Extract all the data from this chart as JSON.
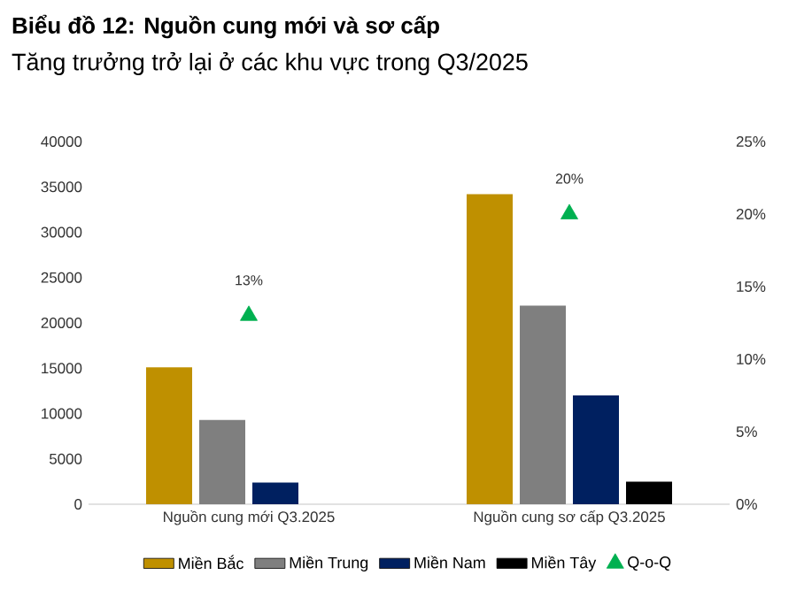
{
  "chart_data": {
    "type": "bar",
    "title": "Biểu đồ 12: Nguồn cung mới và sơ cấp",
    "subtitle": "Tăng trưởng trở lại ở các khu vực trong Q3/2025",
    "categories": [
      "Nguồn cung mới Q3.2025",
      "Nguồn cung sơ cấp Q3.2025"
    ],
    "series": [
      {
        "name": "Miền Bắc",
        "color": "#bf9000",
        "values": [
          15100,
          34200
        ]
      },
      {
        "name": "Miền Trung",
        "color": "#7f7f7f",
        "values": [
          9300,
          21900
        ]
      },
      {
        "name": "Miền Nam",
        "color": "#002060",
        "values": [
          2400,
          12000
        ]
      },
      {
        "name": "Miền Tây",
        "color": "#000000",
        "values": [
          null,
          2500
        ]
      },
      {
        "name": "Q-o-Q",
        "type": "scatter",
        "axis": "y2",
        "marker": "triangle",
        "color": "#00b050",
        "values": [
          13,
          20
        ],
        "value_labels": [
          "13%",
          "20%"
        ]
      }
    ],
    "ylim": [
      0,
      40000
    ],
    "yticks": [
      0,
      5000,
      10000,
      15000,
      20000,
      25000,
      30000,
      35000,
      40000
    ],
    "y2lim": [
      0,
      25
    ],
    "y2ticks": [
      {
        "value": 0,
        "label": "0%"
      },
      {
        "value": 5,
        "label": "5%"
      },
      {
        "value": 10,
        "label": "10%"
      },
      {
        "value": 15,
        "label": "15%"
      },
      {
        "value": 20,
        "label": "20%"
      },
      {
        "value": 25,
        "label": "25%"
      }
    ],
    "legend": "bottom"
  }
}
